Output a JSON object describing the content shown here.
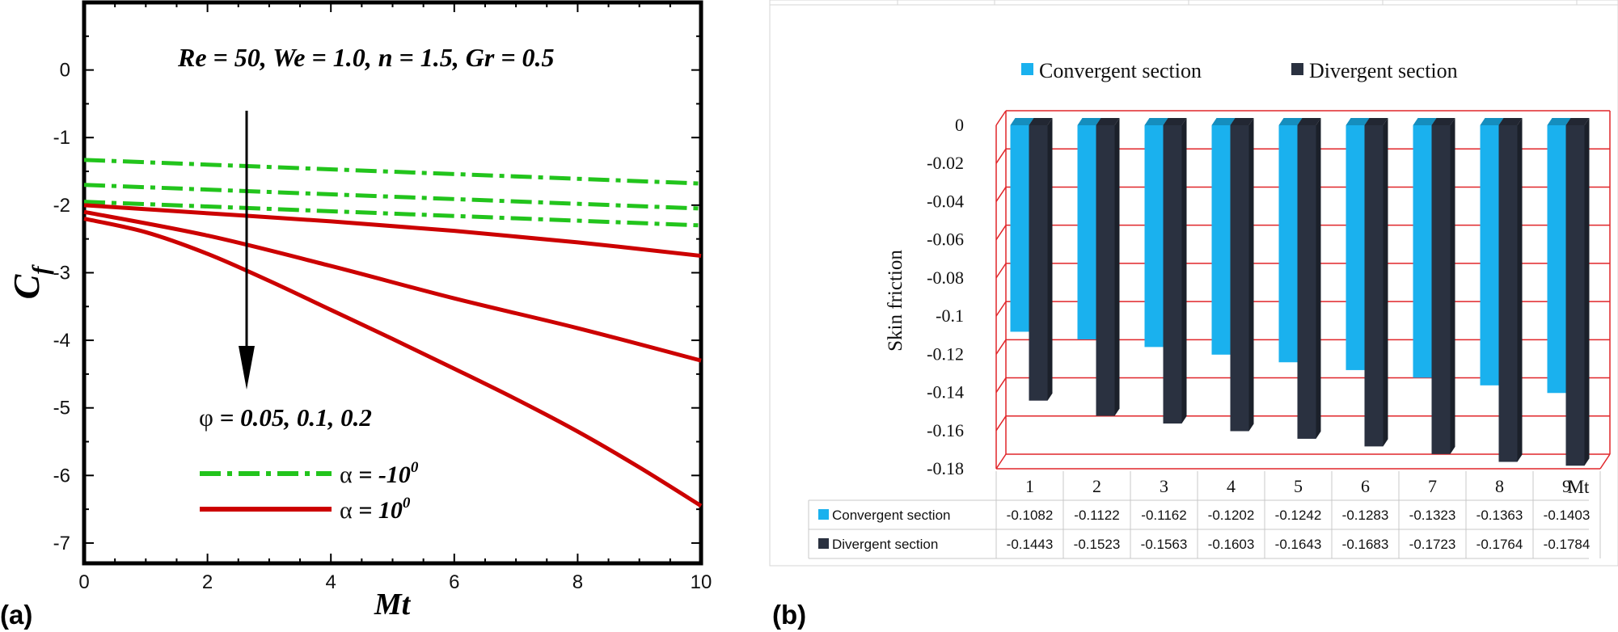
{
  "panel_a_tag": "(a)",
  "panel_b_tag": "(b)",
  "colors": {
    "green": "#22c41c",
    "red": "#cc0000",
    "convergent": "#1ab1ee",
    "divergent": "#2a3140",
    "grid_b": "#e0262a"
  },
  "chart_data": [
    {
      "type": "line",
      "title": "",
      "xlabel": "Mt",
      "ylabel": "C",
      "ylabel_sub": "f",
      "xlim": [
        0,
        10
      ],
      "ylim": [
        -7.3,
        1.0
      ],
      "xticks": [
        "0",
        "2",
        "4",
        "6",
        "8",
        "10"
      ],
      "yticks": [
        "0",
        "-1",
        "-2",
        "-3",
        "-4",
        "-5",
        "-6",
        "-7"
      ],
      "annotation_params": "Re = 50, We = 1.0, n = 1.5, Gr = 0.5",
      "annotation_phi_symbol": "φ",
      "annotation_phi_values": " = 0.05, 0.1, 0.2",
      "legend": [
        {
          "symbol": "α",
          "text": " = -10",
          "sup": "0",
          "style": "dash-dot",
          "color": "#22c41c"
        },
        {
          "symbol": "α",
          "text": " = 10",
          "sup": "0",
          "style": "solid",
          "color": "#cc0000"
        }
      ],
      "series": [
        {
          "name": "α = -10°, φ = 0.05",
          "style": "dash-dot",
          "color": "#22c41c",
          "x": [
            0,
            10
          ],
          "y": [
            -1.33,
            -1.68
          ]
        },
        {
          "name": "α = -10°, φ = 0.1",
          "style": "dash-dot",
          "color": "#22c41c",
          "x": [
            0,
            10
          ],
          "y": [
            -1.7,
            -2.05
          ]
        },
        {
          "name": "α = -10°, φ = 0.2",
          "style": "dash-dot",
          "color": "#22c41c",
          "x": [
            0,
            10
          ],
          "y": [
            -1.95,
            -2.3
          ]
        },
        {
          "name": "α = 10°, φ = 0.05",
          "style": "solid",
          "color": "#cc0000",
          "x": [
            0,
            2,
            4,
            6,
            8,
            10
          ],
          "y": [
            -2.0,
            -2.12,
            -2.24,
            -2.38,
            -2.55,
            -2.75
          ]
        },
        {
          "name": "α = 10°, φ = 0.1",
          "style": "solid",
          "color": "#cc0000",
          "x": [
            0,
            2,
            4,
            6,
            8,
            10
          ],
          "y": [
            -2.1,
            -2.45,
            -2.9,
            -3.38,
            -3.82,
            -4.3
          ]
        },
        {
          "name": "α = 10°, φ = 0.2",
          "style": "solid",
          "color": "#cc0000",
          "x": [
            0,
            1,
            2,
            3,
            4,
            5,
            6,
            7,
            8,
            9,
            10
          ],
          "y": [
            -2.2,
            -2.4,
            -2.72,
            -3.12,
            -3.55,
            -3.98,
            -4.42,
            -4.87,
            -5.35,
            -5.88,
            -6.45
          ]
        }
      ]
    },
    {
      "type": "bar",
      "title": "",
      "xlabel": "Mt",
      "ylabel": "Skin friction",
      "ylim": [
        -0.18,
        0
      ],
      "yticks": [
        "0",
        "-0.02",
        "-0.04",
        "-0.06",
        "-0.08",
        "-0.1",
        "-0.12",
        "-0.14",
        "-0.16",
        "-0.18"
      ],
      "categories": [
        "1",
        "2",
        "3",
        "4",
        "5",
        "6",
        "7",
        "8",
        "9"
      ],
      "series": [
        {
          "name": "Convergent section",
          "color": "#1ab1ee",
          "values": [
            -0.1082,
            -0.1122,
            -0.1162,
            -0.1202,
            -0.1242,
            -0.1283,
            -0.1323,
            -0.1363,
            -0.1403
          ],
          "labels": [
            "-0.1082",
            "-0.1122",
            "-0.1162",
            "-0.1202",
            "-0.1242",
            "-0.1283",
            "-0.1323",
            "-0.1363",
            "-0.1403"
          ]
        },
        {
          "name": "Divergent section",
          "color": "#2a3140",
          "values": [
            -0.1443,
            -0.1523,
            -0.1563,
            -0.1603,
            -0.1643,
            -0.1683,
            -0.1723,
            -0.1764,
            -0.1784
          ],
          "labels": [
            "-0.1443",
            "-0.1523",
            "-0.1563",
            "-0.1603",
            "-0.1643",
            "-0.1683",
            "-0.1723",
            "-0.1764",
            "-0.1784"
          ]
        }
      ]
    }
  ]
}
